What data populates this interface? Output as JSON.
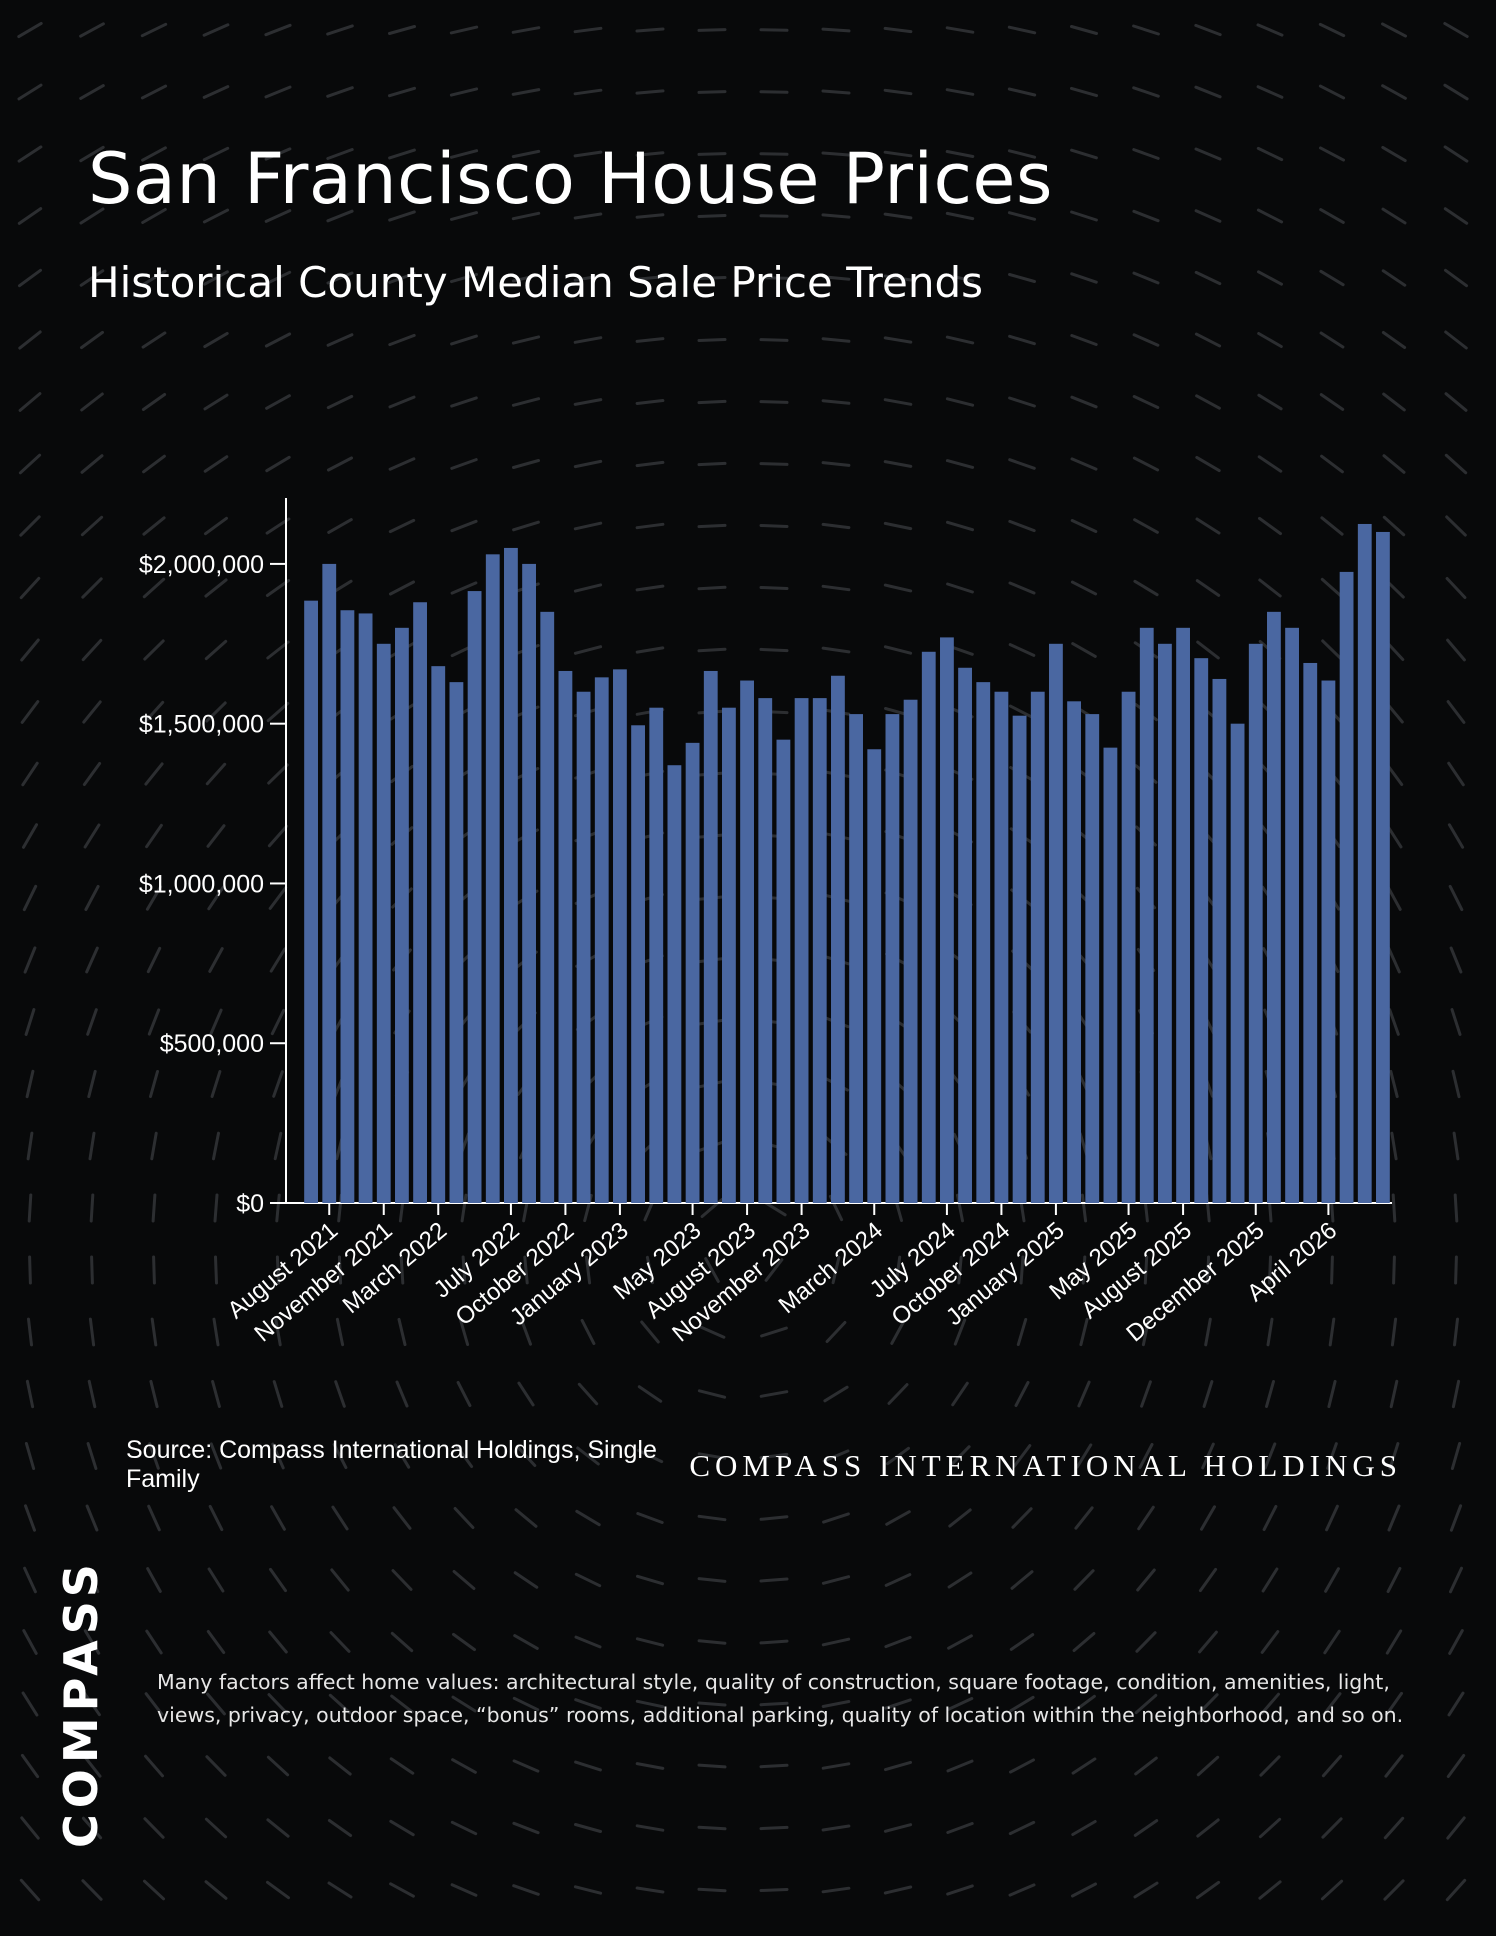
{
  "header": {
    "title": "San Francisco House Prices",
    "subtitle": "Historical County Median Sale Price Trends"
  },
  "footer": {
    "source": "Source: Compass International Holdings, Single Family",
    "wordmark": "COMPASS INTERNATIONAL HOLDINGS",
    "logo": "COMPASS",
    "disclaimer": "Many factors affect home values: architectural style, quality of construction, square footage, condition, amenities, light, views, privacy, outdoor space, “bonus” rooms, additional parking, quality of location within the neighborhood, and so on."
  },
  "colors": {
    "background": "#08090a",
    "bar": "#4a67a1",
    "text": "#ffffff",
    "pattern": "#2c2e31"
  },
  "chart_data": {
    "type": "bar",
    "title": "",
    "xlabel": "",
    "ylabel": "",
    "ylim": [
      0,
      2200000
    ],
    "y_ticks": [
      0,
      500000,
      1000000,
      1500000,
      2000000
    ],
    "y_tick_labels": [
      "$0",
      "$500,000",
      "$1,000,000",
      "$1,500,000",
      "$2,000,000"
    ],
    "grid": false,
    "x_tick_labels": [
      {
        "index": 1,
        "label": "August 2021"
      },
      {
        "index": 4,
        "label": "November 2021"
      },
      {
        "index": 7,
        "label": "March 2022"
      },
      {
        "index": 11,
        "label": "July 2022"
      },
      {
        "index": 14,
        "label": "October 2022"
      },
      {
        "index": 17,
        "label": "January 2023"
      },
      {
        "index": 21,
        "label": "May 2023"
      },
      {
        "index": 24,
        "label": "August 2023"
      },
      {
        "index": 27,
        "label": "November 2023"
      },
      {
        "index": 31,
        "label": "March 2024"
      },
      {
        "index": 35,
        "label": "July 2024"
      },
      {
        "index": 38,
        "label": "October 2024"
      },
      {
        "index": 41,
        "label": "January 2025"
      },
      {
        "index": 45,
        "label": "May 2025"
      },
      {
        "index": 48,
        "label": "August 2025"
      },
      {
        "index": 52,
        "label": "December 2025"
      },
      {
        "index": 56,
        "label": "April 2026"
      }
    ],
    "values": [
      1885000,
      2000000,
      1855000,
      1845000,
      1750000,
      1800000,
      1880000,
      1680000,
      1630000,
      1915000,
      2030000,
      2050000,
      2000000,
      1850000,
      1665000,
      1600000,
      1645000,
      1670000,
      1495000,
      1550000,
      1370000,
      1440000,
      1665000,
      1550000,
      1635000,
      1580000,
      1450000,
      1580000,
      1580000,
      1650000,
      1530000,
      1420000,
      1530000,
      1575000,
      1725000,
      1770000,
      1675000,
      1630000,
      1600000,
      1525000,
      1600000,
      1750000,
      1570000,
      1530000,
      1425000,
      1600000,
      1800000,
      1750000,
      1800000,
      1705000,
      1640000,
      1500000,
      1750000,
      1850000,
      1800000,
      1690000,
      1635000,
      1975000,
      2125000,
      2100000
    ]
  }
}
